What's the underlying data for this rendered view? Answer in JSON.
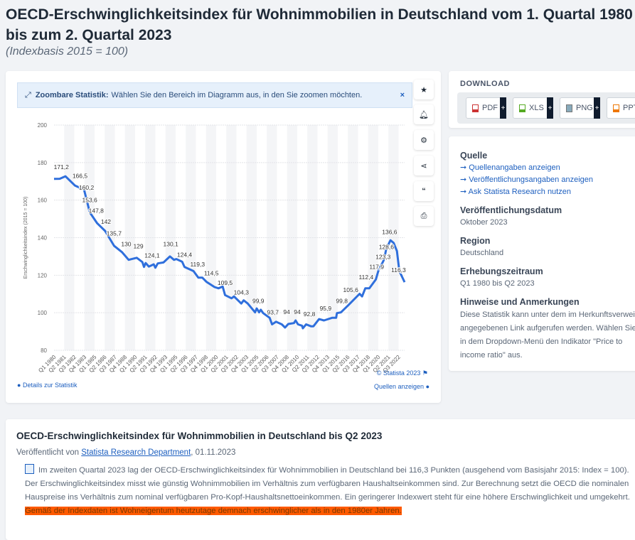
{
  "header": {
    "title": "OECD-Erschwinglichkeitsindex für Wohnimmobilien in Deutschland vom 1. Quartal 1980 bis zum 2. Quartal 2023",
    "subtitle": "(Indexbasis 2015 = 100)"
  },
  "zoom_notice": {
    "bold": "Zoombare Statistik:",
    "text": "Wählen Sie den Bereich im Diagramm aus, in den Sie zoomen möchten.",
    "close": "×"
  },
  "side_tools": [
    "star-icon",
    "bell-icon",
    "gear-icon",
    "share-icon",
    "quote-icon",
    "print-icon"
  ],
  "chart_footer": {
    "copyright": "© Statista 2023",
    "details": "Details zur Statistik",
    "sources": "Quellen anzeigen"
  },
  "download": {
    "title": "DOWNLOAD",
    "buttons": [
      "PDF",
      "XLS",
      "PNG",
      "PPT"
    ]
  },
  "info": {
    "source_heading": "Quelle",
    "source_links": [
      "Quellenangaben anzeigen",
      "Veröffentlichungsangaben anzeigen",
      "Ask Statista Research nutzen"
    ],
    "date_heading": "Veröffentlichungsdatum",
    "date": "Oktober 2023",
    "region_heading": "Region",
    "region": "Deutschland",
    "period_heading": "Erhebungszeitraum",
    "period": "Q1 1980 bis Q2 2023",
    "notes_heading": "Hinweise und Anmerkungen",
    "notes": [
      "Diese Statistik kann unter dem im Herkunftsverweis",
      "angegebenen Link aufgerufen werden. Wählen Sie",
      "in dem Dropdown-Menü den Indikator \"Price to",
      "income ratio\" aus."
    ]
  },
  "article": {
    "title": "OECD-Erschwinglichkeitsindex für Wohnimmobilien in Deutschland bis Q2 2023",
    "published_prefix": "Veröffentlicht von",
    "author": "Statista Research Department",
    "date": ", 01.11.2023",
    "text": "Im zweiten Quartal 2023 lag der OECD-Erschwinglichkeitsindex für Wohnimmobilien in Deutschland bei 116,3 Punkten (ausgehend vom Basisjahr 2015: Index = 100). Der Erschwinglichkeitsindex misst wie günstig Wohnimmobilien im Verhältnis zum verfügbaren Haushaltseinkommen sind. Zur Berechnung setzt die OECD die nominalen Hauspreise ins Verhältnis zum nominal verfügbaren Pro-Kopf-Haushaltsnettoeinkommen. Ein geringerer Indexwert steht für eine höhere Erschwinglichkeit und umgekehrt.",
    "highlight": " Gemäß der Indexdaten ist Wohneigentum heutzutage demnach erschwinglicher als in den 1980er Jahren."
  },
  "chart_data": {
    "type": "line",
    "title": "",
    "xlabel": "",
    "ylabel": "Erschwinglichkeitsindex (2015 = 100)",
    "ylim": [
      80,
      200
    ],
    "yticks": [
      80,
      100,
      120,
      140,
      160,
      180,
      200
    ],
    "xlim": [
      1980.0,
      2023.25
    ],
    "grid": true,
    "color": "#2f6fdc",
    "xticks": [
      "Q1 1980",
      "Q2 1981",
      "Q3 1982",
      "Q4 1983",
      "Q1 1985",
      "Q2 1986",
      "Q3 1987",
      "Q4 1988",
      "Q1 1990",
      "Q2 1991",
      "Q3 1992",
      "Q4 1993",
      "Q1 1995",
      "Q2 1996",
      "Q3 1997",
      "Q4 1998",
      "Q1 2000",
      "Q2 2001",
      "Q3 2002",
      "Q4 2003",
      "Q1 2005",
      "Q2 2006",
      "Q3 2007",
      "Q4 2008",
      "Q1 2010",
      "Q2 2011",
      "Q3 2012",
      "Q4 2013",
      "Q1 2015",
      "Q2 2016",
      "Q3 2017",
      "Q4 2018",
      "Q1 2020",
      "Q2 2021",
      "Q3 2022"
    ],
    "series": [
      [
        1980.0,
        171.3
      ],
      [
        1980.7,
        171.4
      ],
      [
        1981.4,
        172.7
      ],
      [
        1982.6,
        167.7
      ],
      [
        1983.7,
        165.6
      ],
      [
        1984.4,
        153.5
      ],
      [
        1985.3,
        147.8
      ],
      [
        1986.3,
        143.6
      ],
      [
        1987.4,
        135.7
      ],
      [
        1988.4,
        132.2
      ],
      [
        1989.2,
        128.2
      ],
      [
        1990.2,
        129.3
      ],
      [
        1990.9,
        127
      ],
      [
        1991.1,
        124.4
      ],
      [
        1991.3,
        126.5
      ],
      [
        1991.7,
        124.6
      ],
      [
        1992.3,
        125.8
      ],
      [
        1992.5,
        124
      ],
      [
        1992.8,
        126.3
      ],
      [
        1993.5,
        126.8
      ],
      [
        1994.3,
        130
      ],
      [
        1994.8,
        128.2
      ],
      [
        1995.1,
        128.6
      ],
      [
        1995.8,
        127.2
      ],
      [
        1996.1,
        124.4
      ],
      [
        1997.2,
        122.2
      ],
      [
        1997.8,
        118.7
      ],
      [
        1998.3,
        118.7
      ],
      [
        1998.8,
        116.5
      ],
      [
        1999.8,
        113.7
      ],
      [
        2000.3,
        113
      ],
      [
        2000.8,
        114
      ],
      [
        2001.1,
        109.4
      ],
      [
        2001.9,
        107.7
      ],
      [
        2002.2,
        108.7
      ],
      [
        2003.1,
        104.9
      ],
      [
        2003.4,
        106.6
      ],
      [
        2003.9,
        104.9
      ],
      [
        2004.8,
        100.2
      ],
      [
        2005.0,
        102.3
      ],
      [
        2005.3,
        100.2
      ],
      [
        2005.5,
        101.6
      ],
      [
        2005.8,
        99.8
      ],
      [
        2006.6,
        97.3
      ],
      [
        2006.9,
        93.8
      ],
      [
        2007.4,
        95.2
      ],
      [
        2008.1,
        93.8
      ],
      [
        2008.5,
        92.1
      ],
      [
        2008.9,
        94
      ],
      [
        2009.6,
        94.5
      ],
      [
        2009.8,
        95.9
      ],
      [
        2010.1,
        93.8
      ],
      [
        2010.6,
        93.1
      ],
      [
        2010.7,
        91.7
      ],
      [
        2011.1,
        93.8
      ],
      [
        2011.7,
        92.8
      ],
      [
        2012.0,
        92.8
      ],
      [
        2012.7,
        96.6
      ],
      [
        2013.3,
        95.9
      ],
      [
        2014.3,
        97.3
      ],
      [
        2014.8,
        97.3
      ],
      [
        2014.9,
        99.8
      ],
      [
        2015.4,
        100.2
      ],
      [
        2016.3,
        104
      ],
      [
        2016.9,
        106.6
      ],
      [
        2017.7,
        110.1
      ],
      [
        2018.0,
        108.7
      ],
      [
        2018.4,
        113
      ],
      [
        2018.9,
        113
      ],
      [
        2019.7,
        117.7
      ],
      [
        2020.0,
        122.2
      ],
      [
        2020.7,
        128.2
      ],
      [
        2021.0,
        134.3
      ],
      [
        2021.5,
        138.6
      ],
      [
        2021.9,
        137.2
      ],
      [
        2022.3,
        132.9
      ],
      [
        2022.6,
        122.2
      ],
      [
        2023.25,
        116.3
      ]
    ],
    "data_labels": [
      [
        1980.9,
        171.2,
        "171,2"
      ],
      [
        1983.2,
        166.5,
        "166,5"
      ],
      [
        1984.0,
        160.2,
        "160,2"
      ],
      [
        1984.4,
        153.6,
        "153,6"
      ],
      [
        1985.2,
        147.8,
        "147,8"
      ],
      [
        1986.4,
        142,
        "142"
      ],
      [
        1987.4,
        135.7,
        "135,7"
      ],
      [
        1988.9,
        130,
        "130"
      ],
      [
        1990.4,
        129,
        "129"
      ],
      [
        1992.1,
        124.1,
        "124,1"
      ],
      [
        1994.4,
        130.1,
        "130,1"
      ],
      [
        1996.1,
        124.4,
        "124,4"
      ],
      [
        1997.7,
        119.3,
        "119,3"
      ],
      [
        1999.4,
        114.5,
        "114,5"
      ],
      [
        2001.1,
        109.5,
        "109,5"
      ],
      [
        2003.1,
        104.3,
        "104,3"
      ],
      [
        2005.2,
        99.9,
        "99,9"
      ],
      [
        2007.0,
        93.7,
        "93,7"
      ],
      [
        2008.7,
        94,
        "94"
      ],
      [
        2010.0,
        94,
        "94"
      ],
      [
        2011.5,
        92.8,
        "92,8"
      ],
      [
        2013.5,
        95.9,
        "95,9"
      ],
      [
        2015.5,
        99.8,
        "99,8"
      ],
      [
        2016.6,
        105.6,
        "105,6"
      ],
      [
        2018.5,
        112.4,
        "112,4"
      ],
      [
        2019.8,
        117.9,
        "117,9"
      ],
      [
        2020.6,
        123.3,
        "123,3"
      ],
      [
        2021.0,
        128.6,
        "128,6"
      ],
      [
        2021.4,
        136.6,
        "136,6"
      ],
      [
        2022.5,
        116.3,
        "116,3"
      ]
    ]
  }
}
